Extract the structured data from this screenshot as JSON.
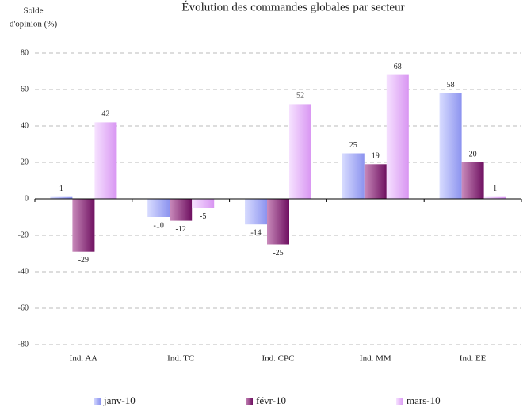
{
  "chart_data": {
    "type": "bar",
    "title": "Évolution des commandes globales par secteur",
    "ylabel": [
      "Solde",
      "d'opinion (%)"
    ],
    "categories": [
      "Ind. AA",
      "Ind. TC",
      "Ind. CPC",
      "Ind. MM",
      "Ind. EE"
    ],
    "series": [
      {
        "name": "janv-10",
        "color": "#a9aef5",
        "values": [
          1,
          -10,
          -14,
          25,
          58
        ]
      },
      {
        "name": "févr-10",
        "color": "#8a2c7c",
        "values": [
          -29,
          -12,
          -25,
          19,
          20
        ]
      },
      {
        "name": "mars-10",
        "color": "#e3b3f7",
        "values": [
          42,
          -5,
          52,
          68,
          1
        ]
      }
    ],
    "ylim": [
      -80,
      80
    ],
    "yticks": [
      -80,
      -60,
      -40,
      -20,
      0,
      20,
      40,
      60,
      80
    ],
    "grid": true
  }
}
